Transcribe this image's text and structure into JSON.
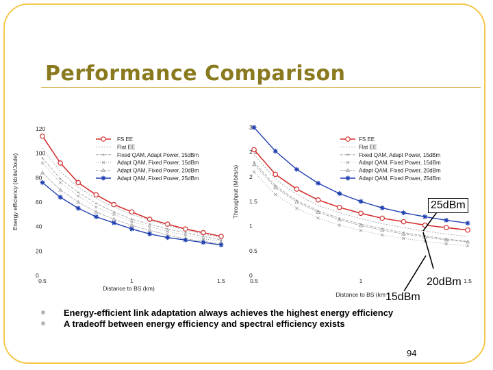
{
  "slide": {
    "title": "Performance Comparison",
    "bullets": [
      "Energy-efficient link adaptation always achieves the highest energy efficiency",
      "A tradeoff between energy efficiency and spectral efficiency exists"
    ],
    "page_number": "94",
    "callouts": [
      "25dBm",
      "20dBm",
      "15dBm"
    ],
    "colors": {
      "frame": "#f5c74a",
      "title": "#8a7a1f",
      "fs_ee": "#d32f2f",
      "fixed_power": "#1f3fb0",
      "others": "#a0a0a0"
    }
  },
  "chart_data": [
    {
      "type": "line",
      "title": "",
      "xlabel": "Distance to BS (km)",
      "ylabel": "Energy efficiency (kbits/Joule)",
      "xlim": [
        0.5,
        1.5
      ],
      "ylim": [
        0,
        120
      ],
      "xticks": [
        "0.5",
        "1",
        "1.5"
      ],
      "yticks": [
        "0",
        "20",
        "40",
        "60",
        "80",
        "100",
        "120"
      ],
      "legend_position": "top-right",
      "x": [
        0.5,
        0.6,
        0.7,
        0.8,
        0.9,
        1.0,
        1.1,
        1.2,
        1.3,
        1.4,
        1.5
      ],
      "series": [
        {
          "name": "FS EE",
          "values": [
            114,
            92,
            76,
            66,
            58,
            52,
            46,
            42,
            38,
            35,
            32
          ]
        },
        {
          "name": "Flat EE",
          "values": [
            104,
            85,
            72,
            63,
            56,
            50,
            45,
            41,
            37,
            34,
            31
          ]
        },
        {
          "name": "Fixed QAM, Adapt Power, 15dBm",
          "values": [
            96,
            79,
            68,
            59,
            52,
            46,
            42,
            38,
            35,
            32,
            29
          ]
        },
        {
          "name": "Adapt QAM, Fixed Power, 15dBm",
          "values": [
            92,
            76,
            65,
            56,
            50,
            44,
            40,
            36,
            33,
            30,
            28
          ]
        },
        {
          "name": "Adapt QAM, Fixed Power, 20dBm",
          "values": [
            84,
            70,
            60,
            52,
            46,
            41,
            37,
            33,
            30,
            28,
            26
          ]
        },
        {
          "name": "Adapt QAM, Fixed Power, 25dBm",
          "values": [
            76,
            64,
            55,
            48,
            43,
            38,
            34,
            31,
            29,
            27,
            25
          ]
        }
      ]
    },
    {
      "type": "line",
      "title": "",
      "xlabel": "Distance to BS (km)",
      "ylabel": "Throughput (Mbits/s)",
      "xlim": [
        0.5,
        1.5
      ],
      "ylim": [
        0,
        3
      ],
      "xticks": [
        "0.5",
        "1",
        "1.5"
      ],
      "yticks": [
        "0",
        "0.5",
        "1",
        "1.5",
        "2",
        "2.5",
        "3"
      ],
      "legend_position": "top-right",
      "x": [
        0.5,
        0.6,
        0.7,
        0.8,
        0.9,
        1.0,
        1.1,
        1.2,
        1.3,
        1.4,
        1.5
      ],
      "series": [
        {
          "name": "FS EE",
          "values": [
            2.55,
            2.05,
            1.75,
            1.53,
            1.38,
            1.26,
            1.16,
            1.09,
            1.02,
            0.97,
            0.92
          ]
        },
        {
          "name": "Flat EE",
          "values": [
            2.45,
            1.95,
            1.64,
            1.42,
            1.27,
            1.15,
            1.05,
            0.97,
            0.9,
            0.84,
            0.79
          ]
        },
        {
          "name": "Fixed QAM, Adapt Power, 15dBm",
          "values": [
            2.3,
            1.82,
            1.52,
            1.31,
            1.16,
            1.04,
            0.95,
            0.87,
            0.8,
            0.74,
            0.69
          ]
        },
        {
          "name": "Adapt QAM, Fixed Power, 15dBm",
          "values": [
            2.1,
            1.64,
            1.36,
            1.16,
            1.02,
            0.91,
            0.82,
            0.75,
            0.69,
            0.64,
            0.6
          ]
        },
        {
          "name": "Adapt QAM, Fixed Power, 20dBm",
          "values": [
            2.25,
            1.78,
            1.49,
            1.28,
            1.13,
            1.01,
            0.92,
            0.84,
            0.78,
            0.72,
            0.68
          ]
        },
        {
          "name": "Adapt QAM, Fixed Power, 25dBm",
          "values": [
            3.0,
            2.52,
            2.15,
            1.87,
            1.66,
            1.5,
            1.37,
            1.27,
            1.19,
            1.12,
            1.06
          ]
        }
      ]
    }
  ]
}
